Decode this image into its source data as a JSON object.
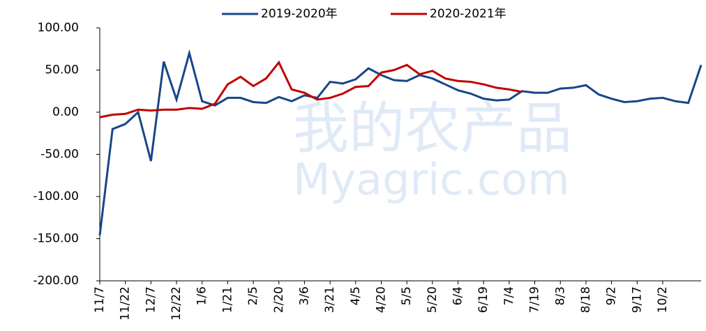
{
  "chart_data": {
    "type": "line",
    "watermark": [
      "我的农产品",
      "Myagric.com"
    ],
    "categories": [
      "11/7",
      null,
      "11/22",
      null,
      "12/7",
      null,
      "12/22",
      null,
      "1/6",
      null,
      "1/21",
      null,
      "2/5",
      null,
      "2/20",
      null,
      "3/6",
      null,
      "3/21",
      null,
      "4/5",
      null,
      "4/20",
      null,
      "5/5",
      null,
      "5/20",
      null,
      "6/4",
      null,
      "6/19",
      null,
      "7/4",
      null,
      "7/19",
      null,
      "8/3",
      null,
      "8/18",
      null,
      "9/2",
      null,
      "9/17",
      null,
      "10/2",
      null,
      null,
      null
    ],
    "series": [
      {
        "name": "2019-2020年",
        "color": "#17468a",
        "values": [
          -146,
          -20,
          -14,
          0,
          -58,
          60,
          15,
          70,
          13,
          8,
          17,
          17,
          12,
          11,
          18,
          13,
          20,
          17,
          36,
          34,
          39,
          52,
          44,
          38,
          37,
          44,
          40,
          33,
          26,
          22,
          16,
          14,
          15,
          25,
          23,
          23,
          28,
          29,
          32,
          21,
          16,
          12,
          13,
          16,
          17,
          13,
          11,
          56
        ]
      },
      {
        "name": "2020-2021年",
        "color": "#c00000",
        "values": [
          -6,
          -3,
          -2,
          3,
          2,
          3,
          3,
          5,
          4,
          10,
          33,
          42,
          31,
          40,
          59,
          27,
          23,
          15,
          17,
          22,
          30,
          31,
          47,
          50,
          56,
          45,
          49,
          40,
          37,
          36,
          33,
          29,
          27,
          24,
          null,
          null,
          null,
          null,
          null,
          null,
          null,
          null,
          null,
          null,
          null,
          null,
          null,
          null
        ]
      }
    ],
    "ylim": [
      -200,
      100
    ],
    "yticks": [
      {
        "value": -200,
        "label": "-200.00"
      },
      {
        "value": -150,
        "label": "-150.00"
      },
      {
        "value": -100,
        "label": "-100.00"
      },
      {
        "value": -50,
        "label": "-50.00"
      },
      {
        "value": 0,
        "label": "0.00"
      },
      {
        "value": 50,
        "label": "50.00"
      },
      {
        "value": 100,
        "label": "100.00"
      }
    ],
    "grid": false,
    "legend": "top"
  }
}
